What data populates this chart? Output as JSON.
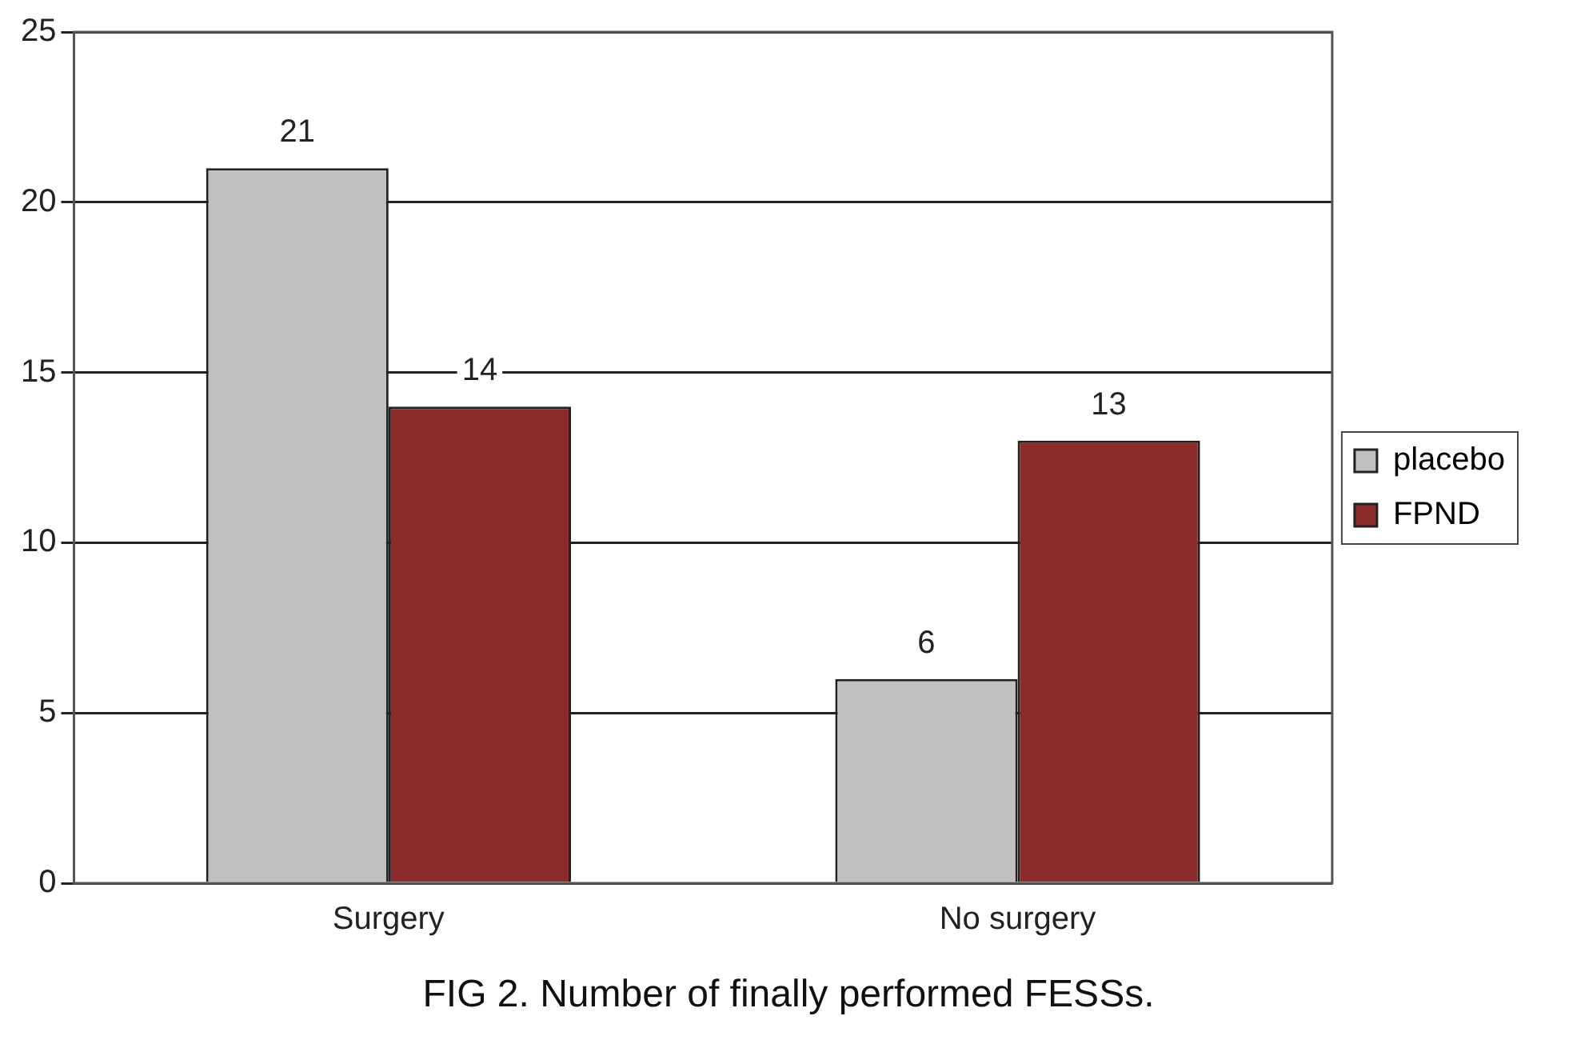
{
  "chart_data": {
    "type": "bar",
    "categories": [
      "Surgery",
      "No surgery"
    ],
    "series": [
      {
        "name": "placebo",
        "color": "#c0c0c0",
        "values": [
          21,
          6
        ]
      },
      {
        "name": "FPND",
        "color": "#8b2b2b",
        "values": [
          14,
          13
        ]
      }
    ],
    "ylim": [
      0,
      25
    ],
    "yticks": [
      0,
      5,
      10,
      15,
      20,
      25
    ],
    "grid": "y",
    "legend": "right",
    "data_labels": true,
    "annotations": [
      "FIG 2. Number of finally performed FESSs."
    ]
  }
}
